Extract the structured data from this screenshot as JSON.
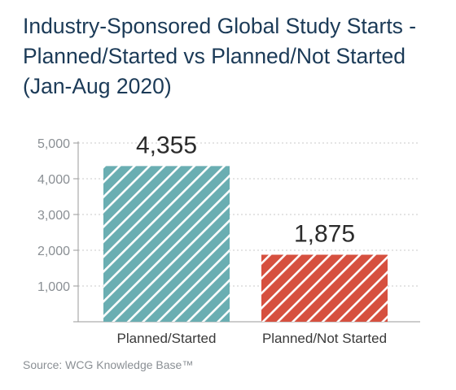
{
  "chart_data": {
    "type": "bar",
    "title_lines": [
      "Industry-Sponsored Global Study Starts -",
      "Planned/Started vs Planned/Not Started",
      "(Jan-Aug 2020)"
    ],
    "categories": [
      "Planned/Started",
      "Planned/Not Started"
    ],
    "values": [
      4355,
      1875
    ],
    "data_labels": [
      "4,355",
      "1,875"
    ],
    "colors": [
      "#6aaeb2",
      "#d6503f"
    ],
    "hatch_color": "#ffffff",
    "ylim": [
      0,
      5000
    ],
    "yticks": [
      5000,
      4000,
      3000,
      2000,
      1000
    ],
    "ytick_labels": [
      "5,000",
      "4,000",
      "3,000",
      "2,000",
      "1,000"
    ],
    "grid": true,
    "grid_style": "dotted",
    "source": "Source: WCG Knowledge Base™"
  }
}
